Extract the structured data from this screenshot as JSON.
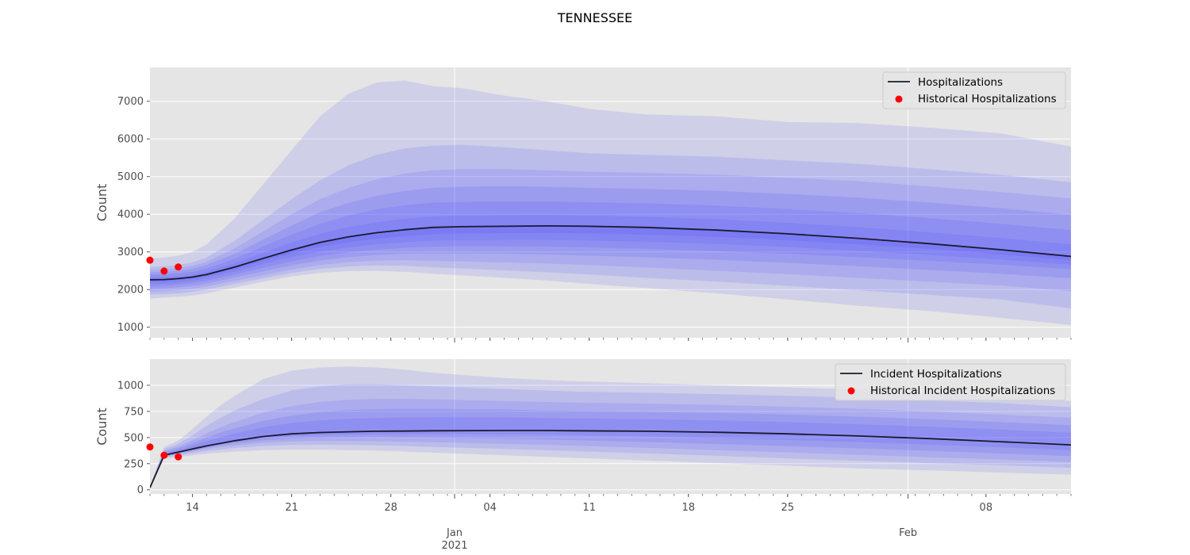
{
  "figure": {
    "suptitle": "TENNESSEE",
    "colors": {
      "panel_bg": "#e5e5e5",
      "band": "#3a3aff",
      "median": "#1a1a2e",
      "historical": "#ff0000",
      "grid": "#ffffff"
    }
  },
  "chart_data": [
    {
      "type": "area",
      "ylabel": "Count",
      "ylim": [
        720,
        7900
      ],
      "yticks": [
        1000,
        2000,
        3000,
        4000,
        5000,
        6000,
        7000
      ],
      "xlim": [
        0,
        65
      ],
      "grid": true,
      "legend_position": "top-right",
      "legend": [
        {
          "label": "Hospitalizations",
          "marker": "line"
        },
        {
          "label": "Historical Hospitalizations",
          "marker": "dot"
        }
      ],
      "median": {
        "name": "Hospitalizations",
        "x": [
          0,
          1,
          2,
          3,
          4,
          6,
          8,
          10,
          12,
          14,
          16,
          18,
          20,
          22,
          25,
          28,
          31,
          35,
          40,
          45,
          50,
          55,
          60,
          65
        ],
        "y": [
          2260,
          2265,
          2290,
          2330,
          2400,
          2600,
          2830,
          3050,
          3250,
          3400,
          3510,
          3590,
          3650,
          3670,
          3680,
          3690,
          3680,
          3650,
          3580,
          3480,
          3360,
          3220,
          3060,
          2880
        ]
      },
      "band_x": [
        0,
        1,
        2,
        3,
        4,
        6,
        8,
        10,
        12,
        14,
        16,
        18,
        20,
        22,
        25,
        28,
        31,
        35,
        40,
        45,
        50,
        55,
        60,
        65
      ],
      "bands": [
        {
          "lower": [
            1760,
            1790,
            1810,
            1840,
            1900,
            2050,
            2210,
            2350,
            2440,
            2490,
            2500,
            2470,
            2420,
            2380,
            2310,
            2240,
            2150,
            2040,
            1900,
            1740,
            1570,
            1430,
            1250,
            1060
          ],
          "upper": [
            2820,
            2850,
            2900,
            3000,
            3200,
            3900,
            4800,
            5700,
            6600,
            7200,
            7500,
            7550,
            7400,
            7350,
            7150,
            7000,
            6800,
            6650,
            6600,
            6450,
            6420,
            6300,
            6150,
            5800
          ]
        },
        {
          "lower": [
            1860,
            1880,
            1900,
            1940,
            2000,
            2150,
            2300,
            2440,
            2550,
            2610,
            2640,
            2630,
            2590,
            2560,
            2510,
            2460,
            2400,
            2310,
            2210,
            2100,
            1980,
            1860,
            1740,
            1500
          ]
        },
        {
          "lower": [
            1940,
            1960,
            1990,
            2020,
            2080,
            2230,
            2380,
            2530,
            2650,
            2730,
            2770,
            2780,
            2760,
            2750,
            2720,
            2690,
            2650,
            2590,
            2500,
            2410,
            2310,
            2210,
            2110,
            1960
          ],
          "upper": [
            2600,
            2620,
            2650,
            2720,
            2850,
            3300,
            3850,
            4400,
            4900,
            5300,
            5580,
            5750,
            5820,
            5840,
            5780,
            5700,
            5620,
            5580,
            5530,
            5430,
            5340,
            5200,
            5050,
            4850
          ]
        },
        {
          "lower": [
            2010,
            2030,
            2060,
            2100,
            2160,
            2320,
            2480,
            2640,
            2770,
            2860,
            2920,
            2950,
            2960,
            2960,
            2950,
            2930,
            2900,
            2860,
            2790,
            2710,
            2620,
            2520,
            2420,
            2300
          ],
          "upper": [
            2520,
            2540,
            2570,
            2630,
            2740,
            3100,
            3550,
            4000,
            4400,
            4700,
            4930,
            5080,
            5170,
            5200,
            5200,
            5170,
            5130,
            5100,
            5050,
            4970,
            4880,
            4740,
            4590,
            4420
          ]
        },
        {
          "lower": [
            2080,
            2100,
            2130,
            2170,
            2230,
            2400,
            2580,
            2750,
            2890,
            2990,
            3060,
            3110,
            3140,
            3150,
            3150,
            3140,
            3120,
            3080,
            3020,
            2950,
            2860,
            2760,
            2660,
            2540
          ],
          "upper": [
            2450,
            2470,
            2500,
            2550,
            2650,
            2950,
            3330,
            3700,
            4050,
            4300,
            4490,
            4620,
            4700,
            4730,
            4740,
            4730,
            4700,
            4670,
            4620,
            4540,
            4440,
            4310,
            4160,
            3990
          ]
        },
        {
          "lower": [
            2150,
            2160,
            2190,
            2230,
            2300,
            2480,
            2680,
            2860,
            3010,
            3120,
            3200,
            3260,
            3300,
            3310,
            3320,
            3320,
            3300,
            3270,
            3210,
            3130,
            3030,
            2920,
            2800,
            2660
          ],
          "upper": [
            2390,
            2400,
            2430,
            2470,
            2560,
            2820,
            3150,
            3460,
            3750,
            3970,
            4130,
            4240,
            4310,
            4330,
            4340,
            4340,
            4320,
            4290,
            4230,
            4140,
            4030,
            3900,
            3750,
            3580
          ]
        },
        {
          "lower": [
            2210,
            2220,
            2250,
            2290,
            2360,
            2550,
            2760,
            2960,
            3130,
            3260,
            3350,
            3420,
            3470,
            3490,
            3500,
            3510,
            3490,
            3460,
            3400,
            3310,
            3200,
            3080,
            2940,
            2780
          ],
          "upper": [
            2320,
            2330,
            2350,
            2390,
            2470,
            2700,
            2980,
            3250,
            3480,
            3660,
            3790,
            3880,
            3940,
            3960,
            3970,
            3980,
            3960,
            3930,
            3870,
            3770,
            3660,
            3520,
            3370,
            3200
          ]
        }
      ],
      "historical": {
        "name": "Historical Hospitalizations",
        "x": [
          0,
          1,
          2
        ],
        "y": [
          2780,
          2490,
          2600
        ]
      },
      "x_ticks": [
        {
          "x": 3,
          "label": "14"
        },
        {
          "x": 10,
          "label": "21"
        },
        {
          "x": 17,
          "label": "28"
        },
        {
          "x": 24,
          "label": "04"
        },
        {
          "x": 31,
          "label": "11"
        },
        {
          "x": 38,
          "label": "18"
        },
        {
          "x": 45,
          "label": "25"
        },
        {
          "x": 59,
          "label": "08"
        }
      ],
      "x_major": [
        21.5,
        53.5
      ],
      "x_minor_step": 1
    },
    {
      "type": "area",
      "ylabel": "Count",
      "ylim": [
        -40,
        1250
      ],
      "yticks": [
        0,
        250,
        500,
        750,
        1000
      ],
      "xlim": [
        0,
        65
      ],
      "grid": true,
      "legend_position": "top-right",
      "legend": [
        {
          "label": "Incident Hospitalizations",
          "marker": "line"
        },
        {
          "label": "Historical Incident Hospitalizations",
          "marker": "dot"
        }
      ],
      "median": {
        "name": "Incident Hospitalizations",
        "x": [
          0,
          1,
          2,
          3,
          4,
          5,
          6,
          8,
          10,
          12,
          14,
          16,
          18,
          20,
          25,
          28,
          30,
          35,
          40,
          45,
          50,
          55,
          60,
          65
        ],
        "y": [
          20,
          330,
          360,
          390,
          420,
          445,
          470,
          510,
          535,
          548,
          555,
          560,
          562,
          565,
          567,
          567,
          565,
          560,
          550,
          535,
          515,
          490,
          460,
          430
        ]
      },
      "band_x": [
        0,
        1,
        2,
        3,
        4,
        5,
        6,
        8,
        10,
        12,
        14,
        16,
        18,
        20,
        25,
        28,
        30,
        35,
        40,
        45,
        50,
        55,
        60,
        65
      ],
      "bands": [
        {
          "lower": [
            10,
            300,
            315,
            330,
            345,
            355,
            365,
            380,
            385,
            385,
            380,
            375,
            365,
            355,
            330,
            315,
            305,
            280,
            255,
            230,
            205,
            185,
            165,
            145
          ],
          "upper": [
            30,
            410,
            470,
            580,
            700,
            810,
            900,
            1060,
            1140,
            1170,
            1180,
            1170,
            1150,
            1120,
            1070,
            1050,
            1040,
            1020,
            1000,
            980,
            960,
            930,
            890,
            850
          ]
        },
        {
          "lower": [
            12,
            310,
            330,
            350,
            370,
            385,
            400,
            420,
            430,
            432,
            430,
            425,
            418,
            410,
            390,
            378,
            370,
            348,
            325,
            300,
            278,
            255,
            235,
            210
          ],
          "upper": [
            28,
            390,
            440,
            520,
            610,
            690,
            760,
            870,
            950,
            990,
            1010,
            1010,
            1000,
            990,
            965,
            950,
            940,
            930,
            915,
            900,
            880,
            855,
            830,
            790
          ]
        },
        {
          "lower": [
            14,
            318,
            342,
            365,
            390,
            408,
            424,
            450,
            463,
            468,
            468,
            465,
            460,
            455,
            440,
            430,
            422,
            402,
            380,
            358,
            335,
            312,
            290,
            265
          ],
          "upper": [
            26,
            375,
            415,
            475,
            540,
            600,
            650,
            740,
            800,
            840,
            860,
            870,
            870,
            865,
            850,
            840,
            835,
            825,
            812,
            795,
            775,
            750,
            720,
            690
          ]
        },
        {
          "lower": [
            16,
            323,
            350,
            375,
            402,
            425,
            444,
            473,
            490,
            498,
            501,
            502,
            500,
            498,
            488,
            480,
            474,
            458,
            438,
            418,
            396,
            373,
            348,
            322
          ],
          "upper": [
            24,
            362,
            398,
            445,
            500,
            548,
            588,
            660,
            710,
            745,
            762,
            772,
            775,
            775,
            768,
            760,
            756,
            748,
            736,
            720,
            700,
            676,
            648,
            618
          ]
        },
        {
          "lower": [
            18,
            327,
            355,
            383,
            411,
            436,
            458,
            492,
            513,
            523,
            528,
            531,
            532,
            533,
            530,
            526,
            522,
            510,
            494,
            476,
            456,
            433,
            406,
            378
          ],
          "upper": [
            22,
            348,
            380,
            420,
            465,
            505,
            540,
            600,
            640,
            665,
            680,
            688,
            692,
            694,
            692,
            688,
            684,
            676,
            664,
            648,
            628,
            604,
            576,
            546
          ]
        }
      ],
      "historical": {
        "name": "Historical Incident Hospitalizations",
        "x": [
          0,
          1,
          2
        ],
        "y": [
          410,
          330,
          315
        ]
      },
      "x_ticks": [
        {
          "x": 3,
          "label": "14"
        },
        {
          "x": 10,
          "label": "21"
        },
        {
          "x": 17,
          "label": "28"
        },
        {
          "x": 24,
          "label": "04"
        },
        {
          "x": 31,
          "label": "11"
        },
        {
          "x": 38,
          "label": "18"
        },
        {
          "x": 45,
          "label": "25"
        },
        {
          "x": 59,
          "label": "08"
        }
      ],
      "x_major": [
        {
          "x": 21.5,
          "label": "Jan",
          "sublabel": "2021"
        },
        {
          "x": 53.5,
          "label": "Feb",
          "sublabel": ""
        }
      ],
      "x_minor_step": 1
    }
  ]
}
